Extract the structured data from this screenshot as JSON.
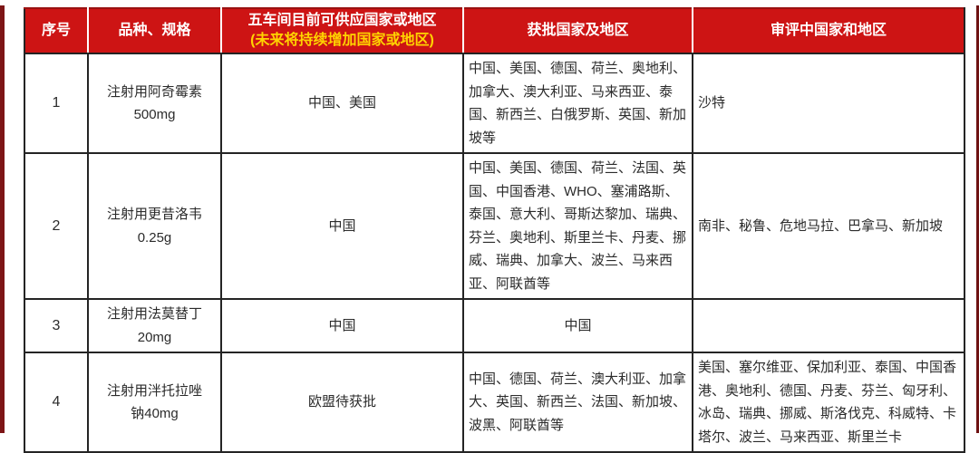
{
  "page": {
    "accent_red": "#cd1414",
    "highlight_yellow": "#ffd400",
    "edge_bar_color": "#7d1516",
    "body_text_color": "#2b2b2b"
  },
  "table": {
    "columns": [
      {
        "label": "序号"
      },
      {
        "label": "品种、规格"
      },
      {
        "label": "五车间目前可供应国家或地区",
        "sublabel": "(未来将持续增加国家或地区)"
      },
      {
        "label": "获批国家及地区"
      },
      {
        "label": "审评中国家和地区"
      }
    ],
    "rows": [
      {
        "index": "1",
        "product": "注射用阿奇霉素500mg",
        "supply": "中国、美国",
        "approved": "中国、美国、德国、荷兰、奥地利、加拿大、澳大利亚、马来西亚、泰国、新西兰、白俄罗斯、英国、新加坡等",
        "under_review": "沙特"
      },
      {
        "index": "2",
        "product": "注射用更昔洛韦0.25g",
        "supply": "中国",
        "approved": "中国、美国、德国、荷兰、法国、英国、中国香港、WHO、塞浦路斯、泰国、意大利、哥斯达黎加、瑞典、芬兰、奥地利、斯里兰卡、丹麦、挪威、瑞典、加拿大、波兰、马来西亚、阿联酋等",
        "under_review": "南非、秘鲁、危地马拉、巴拿马、新加坡"
      },
      {
        "index": "3",
        "product": "注射用法莫替丁20mg",
        "supply": "中国",
        "approved": "中国",
        "under_review": ""
      },
      {
        "index": "4",
        "product": "注射用泮托拉唑钠40mg",
        "supply": "欧盟待获批",
        "approved": "中国、德国、荷兰、澳大利亚、加拿大、英国、新西兰、法国、新加坡、波黑、阿联酋等",
        "under_review": "美国、塞尔维亚、保加利亚、泰国、中国香港、奥地利、德国、丹麦、芬兰、匈牙利、冰岛、瑞典、挪威、斯洛伐克、科威特、卡塔尔、波兰、马来西亚、斯里兰卡"
      }
    ]
  }
}
